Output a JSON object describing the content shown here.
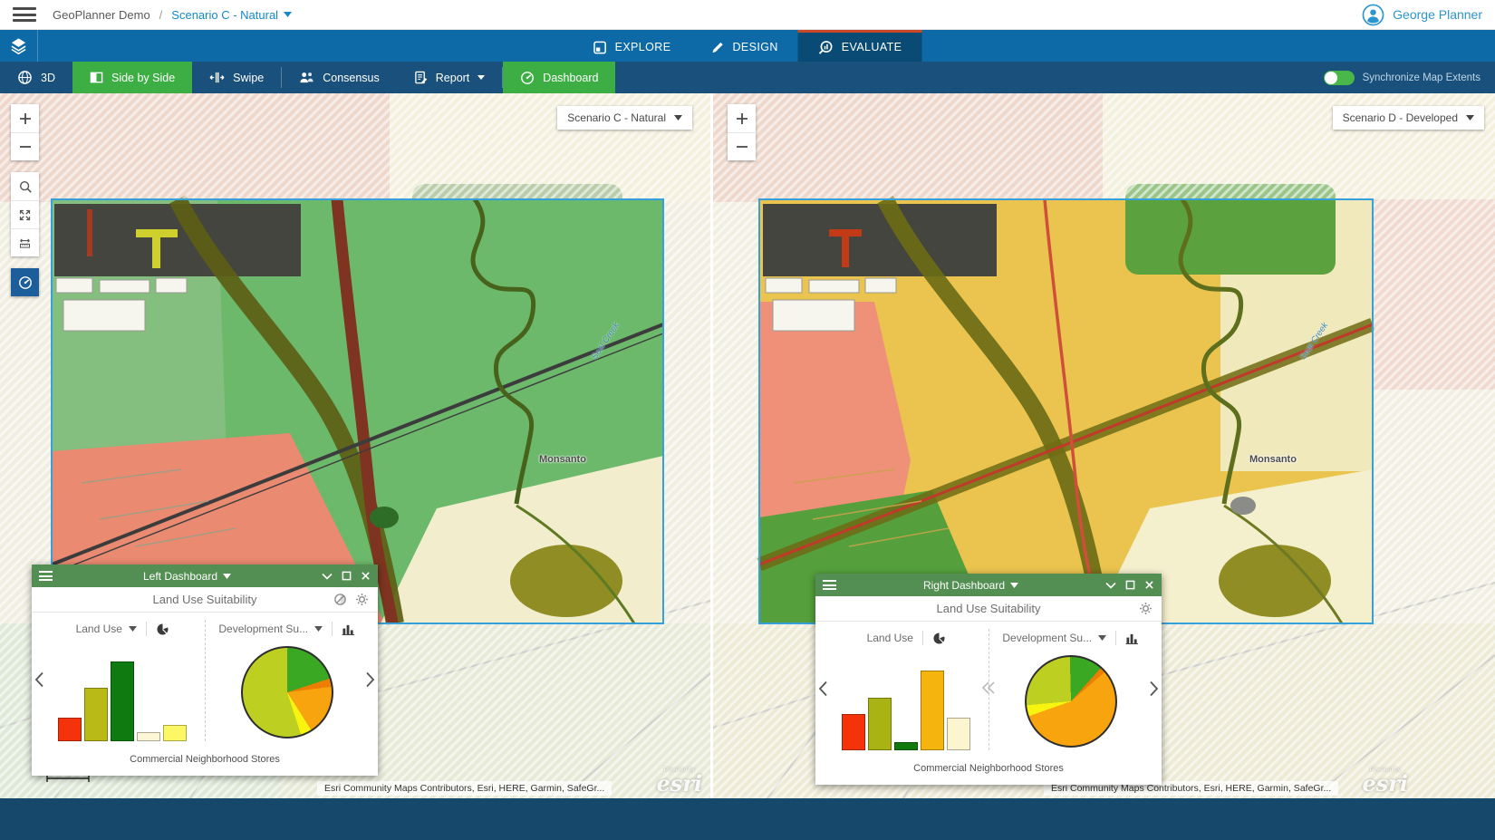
{
  "header": {
    "breadcrumb": {
      "app_title": "GeoPlanner Demo",
      "separator": "/",
      "scenario": "Scenario C - Natural"
    },
    "user_name": "George Planner"
  },
  "nav": {
    "tabs": [
      {
        "label": "EXPLORE"
      },
      {
        "label": "DESIGN"
      },
      {
        "label": "EVALUATE",
        "active": true
      }
    ]
  },
  "toolbar": {
    "buttons": [
      {
        "label": "3D"
      },
      {
        "label": "Side by Side",
        "active": true
      },
      {
        "label": "Swipe"
      },
      {
        "label": "Consensus"
      },
      {
        "label": "Report"
      },
      {
        "label": "Dashboard",
        "active": true
      }
    ],
    "sync_label": "Synchronize Map Extents"
  },
  "icons": {
    "layers": "layer-stack",
    "explore": "map-tile",
    "design": "pencil",
    "evaluate": "magnifier-chart",
    "threed": "globe",
    "side_by_side": "split-square",
    "swipe": "swipe-arrows",
    "consensus": "people",
    "report": "document-pencil",
    "dashboard": "gauge",
    "user": "person-circle"
  },
  "colors": {
    "nav_blue": "#0d6aa7",
    "toolbar_blue": "#19507c",
    "active_tab": "#0a4b76",
    "tab_accent": "#cb4827",
    "green_accent": "#3cae43",
    "panel_green": "#538e52",
    "link_blue": "#1289c9"
  },
  "left_map": {
    "scenario": "Scenario C - Natural",
    "place_label": "Monsanto",
    "creek_label": "Seal Creek",
    "attribution": "Esri Community Maps Contributors, Esri, HERE, Garmin, SafeGr...",
    "powered_by": "Powered by",
    "logo": "esri"
  },
  "right_map": {
    "scenario": "Scenario D - Developed",
    "place_label": "Monsanto",
    "creek_label": "Seal Creek",
    "attribution": "Esri Community Maps Contributors, Esri, HERE, Garmin, SafeGr...",
    "powered_by": "Powered by",
    "logo": "esri"
  },
  "left_dashboard": {
    "title": "Left Dashboard",
    "widget_title": "Land Use Suitability",
    "footer": "Commercial Neighborhood Stores",
    "cards": [
      {
        "selector_label": "Land Use"
      },
      {
        "selector_label": "Development Su..."
      }
    ]
  },
  "right_dashboard": {
    "title": "Right Dashboard",
    "widget_title": "Land Use Suitability",
    "footer": "Commercial Neighborhood Stores",
    "cards": [
      {
        "selector_label": "Land Use"
      },
      {
        "selector_label": "Development Su..."
      }
    ]
  },
  "chart_data": [
    {
      "id": "left-land-use-bar",
      "dashboard": "Left Dashboard",
      "widget": "Land Use",
      "type": "bar",
      "units": "relative height, % of plot (no axis labels shown)",
      "values": [
        24,
        54,
        80,
        9,
        16
      ],
      "colors": [
        "#f5330a",
        "#b9ba17",
        "#0e7a10",
        "#fdf7d8",
        "#fbf765"
      ]
    },
    {
      "id": "left-development-suitability-pie",
      "dashboard": "Left Dashboard",
      "widget": "Development Su...",
      "type": "pie",
      "start_angle": 0,
      "segments": [
        {
          "value": 20,
          "color": "#3aa823"
        },
        {
          "value": 3,
          "color": "#ee7d04"
        },
        {
          "value": 18,
          "color": "#f7a40e"
        },
        {
          "value": 4,
          "color": "#f8f410"
        },
        {
          "value": 55,
          "color": "#bdd021"
        }
      ]
    },
    {
      "id": "right-land-use-bar",
      "dashboard": "Right Dashboard",
      "widget": "Land Use",
      "type": "bar",
      "units": "relative height, % of plot (no axis labels shown)",
      "values": [
        36,
        53,
        8,
        80,
        33
      ],
      "colors": [
        "#f5330a",
        "#a9b414",
        "#127a0c",
        "#f6b40e",
        "#fdf5cf"
      ]
    },
    {
      "id": "right-development-suitability-pie",
      "dashboard": "Right Dashboard",
      "widget": "Development Su...",
      "type": "pie",
      "start_angle": 265,
      "segments": [
        {
          "value": 26,
          "color": "#bdd021"
        },
        {
          "value": 12,
          "color": "#3aa823"
        },
        {
          "value": 2,
          "color": "#ee7d04"
        },
        {
          "value": 56,
          "color": "#f7a40e"
        },
        {
          "value": 4,
          "color": "#f8f410"
        }
      ]
    }
  ]
}
